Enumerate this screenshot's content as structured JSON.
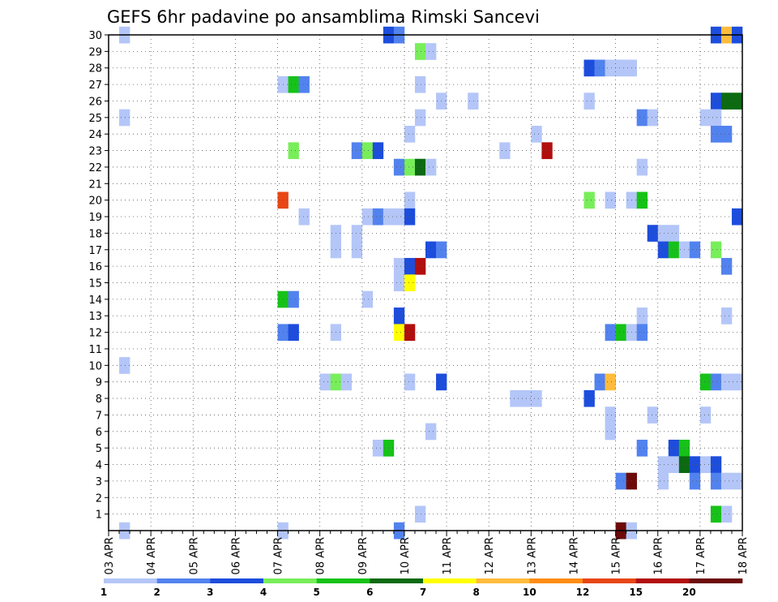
{
  "chart_data": {
    "type": "heatmap",
    "title": "GEFS 6hr padavine po ansamblima Rimski Sancevi",
    "x_tick_labels": [
      "03 APR",
      "04 APR",
      "05 APR",
      "06 APR",
      "07 APR",
      "08 APR",
      "09 APR",
      "10 APR",
      "11 APR",
      "12 APR",
      "13 APR",
      "14 APR",
      "15 APR",
      "16 APR",
      "17 APR",
      "18 APR"
    ],
    "x_range_days": [
      0,
      15
    ],
    "y_tick_labels": [
      "1",
      "2",
      "3",
      "4",
      "5",
      "6",
      "7",
      "8",
      "9",
      "10",
      "11",
      "12",
      "13",
      "14",
      "15",
      "16",
      "17",
      "18",
      "19",
      "20",
      "21",
      "22",
      "23",
      "24",
      "25",
      "26",
      "27",
      "28",
      "29",
      "30"
    ],
    "grid": true,
    "colorbar": {
      "labels": [
        "1",
        "2",
        "3",
        "4",
        "5",
        "6",
        "7",
        "8",
        "10",
        "12",
        "15",
        "20"
      ],
      "colors": [
        "#b4c6f8",
        "#5282ee",
        "#1d4ddc",
        "#78ee5a",
        "#16c218",
        "#0c6a12",
        "#ffff00",
        "#ffbc3c",
        "#ff8c12",
        "#e84614",
        "#b20e0e",
        "#6c0a0a"
      ]
    },
    "cells": [
      {
        "day": 0.25,
        "member": 30,
        "level": 1
      },
      {
        "day": 6.5,
        "member": 30,
        "level": 3
      },
      {
        "day": 6.75,
        "member": 30,
        "level": 2
      },
      {
        "day": 14.25,
        "member": 30,
        "level": 3
      },
      {
        "day": 14.5,
        "member": 30,
        "level": 8
      },
      {
        "day": 14.75,
        "member": 30,
        "level": 3
      },
      {
        "day": 7.25,
        "member": 29,
        "level": 4
      },
      {
        "day": 7.5,
        "member": 29,
        "level": 1
      },
      {
        "day": 11.25,
        "member": 28,
        "level": 3
      },
      {
        "day": 11.5,
        "member": 28,
        "level": 2
      },
      {
        "day": 11.75,
        "member": 28,
        "level": 1
      },
      {
        "day": 12.0,
        "member": 28,
        "level": 1
      },
      {
        "day": 12.25,
        "member": 28,
        "level": 1
      },
      {
        "day": 4.0,
        "member": 27,
        "level": 1
      },
      {
        "day": 4.25,
        "member": 27,
        "level": 5
      },
      {
        "day": 4.5,
        "member": 27,
        "level": 2
      },
      {
        "day": 7.25,
        "member": 27,
        "level": 1
      },
      {
        "day": 7.75,
        "member": 26,
        "level": 1
      },
      {
        "day": 8.5,
        "member": 26,
        "level": 1
      },
      {
        "day": 11.25,
        "member": 26,
        "level": 1
      },
      {
        "day": 14.25,
        "member": 26,
        "level": 3
      },
      {
        "day": 14.5,
        "member": 26,
        "level": 6
      },
      {
        "day": 14.75,
        "member": 26,
        "level": 6
      },
      {
        "day": 0.25,
        "member": 25,
        "level": 1
      },
      {
        "day": 7.25,
        "member": 25,
        "level": 1
      },
      {
        "day": 12.5,
        "member": 25,
        "level": 2
      },
      {
        "day": 12.75,
        "member": 25,
        "level": 1
      },
      {
        "day": 14.0,
        "member": 25,
        "level": 1
      },
      {
        "day": 14.25,
        "member": 25,
        "level": 1
      },
      {
        "day": 7.0,
        "member": 24,
        "level": 1
      },
      {
        "day": 10.0,
        "member": 24,
        "level": 1
      },
      {
        "day": 14.25,
        "member": 24,
        "level": 2
      },
      {
        "day": 14.5,
        "member": 24,
        "level": 2
      },
      {
        "day": 4.25,
        "member": 23,
        "level": 4
      },
      {
        "day": 5.75,
        "member": 23,
        "level": 2
      },
      {
        "day": 6.0,
        "member": 23,
        "level": 4
      },
      {
        "day": 6.25,
        "member": 23,
        "level": 3
      },
      {
        "day": 9.25,
        "member": 23,
        "level": 1
      },
      {
        "day": 10.25,
        "member": 23,
        "level": 11
      },
      {
        "day": 6.75,
        "member": 22,
        "level": 2
      },
      {
        "day": 7.0,
        "member": 22,
        "level": 4
      },
      {
        "day": 7.25,
        "member": 22,
        "level": 6
      },
      {
        "day": 7.5,
        "member": 22,
        "level": 1
      },
      {
        "day": 12.5,
        "member": 22,
        "level": 1
      },
      {
        "day": 4.0,
        "member": 20,
        "level": 10
      },
      {
        "day": 7.0,
        "member": 20,
        "level": 1
      },
      {
        "day": 11.25,
        "member": 20,
        "level": 4
      },
      {
        "day": 11.75,
        "member": 20,
        "level": 1
      },
      {
        "day": 12.25,
        "member": 20,
        "level": 1
      },
      {
        "day": 12.5,
        "member": 20,
        "level": 5
      },
      {
        "day": 4.5,
        "member": 19,
        "level": 1
      },
      {
        "day": 6.0,
        "member": 19,
        "level": 1
      },
      {
        "day": 6.25,
        "member": 19,
        "level": 2
      },
      {
        "day": 6.5,
        "member": 19,
        "level": 1
      },
      {
        "day": 6.75,
        "member": 19,
        "level": 1
      },
      {
        "day": 7.0,
        "member": 19,
        "level": 3
      },
      {
        "day": 14.75,
        "member": 19,
        "level": 3
      },
      {
        "day": 5.25,
        "member": 18,
        "level": 1
      },
      {
        "day": 5.75,
        "member": 18,
        "level": 1
      },
      {
        "day": 12.75,
        "member": 18,
        "level": 3
      },
      {
        "day": 13.0,
        "member": 18,
        "level": 1
      },
      {
        "day": 13.25,
        "member": 18,
        "level": 1
      },
      {
        "day": 5.25,
        "member": 17,
        "level": 1
      },
      {
        "day": 5.75,
        "member": 17,
        "level": 1
      },
      {
        "day": 14.25,
        "member": 17,
        "level": 4
      },
      {
        "day": 7.5,
        "member": 17,
        "level": 3
      },
      {
        "day": 7.75,
        "member": 17,
        "level": 2
      },
      {
        "day": 13.0,
        "member": 17,
        "level": 3
      },
      {
        "day": 13.25,
        "member": 17,
        "level": 5
      },
      {
        "day": 13.5,
        "member": 17,
        "level": 1
      },
      {
        "day": 13.75,
        "member": 17,
        "level": 2
      },
      {
        "day": 6.75,
        "member": 16,
        "level": 1
      },
      {
        "day": 7.0,
        "member": 16,
        "level": 3
      },
      {
        "day": 7.25,
        "member": 16,
        "level": 11
      },
      {
        "day": 14.5,
        "member": 16,
        "level": 2
      },
      {
        "day": 6.75,
        "member": 15,
        "level": 1
      },
      {
        "day": 7.0,
        "member": 15,
        "level": 7
      },
      {
        "day": 4.0,
        "member": 14,
        "level": 5
      },
      {
        "day": 4.25,
        "member": 14,
        "level": 2
      },
      {
        "day": 6.0,
        "member": 14,
        "level": 1
      },
      {
        "day": 6.75,
        "member": 13,
        "level": 3
      },
      {
        "day": 12.5,
        "member": 13,
        "level": 1
      },
      {
        "day": 14.5,
        "member": 13,
        "level": 1
      },
      {
        "day": 4.0,
        "member": 12,
        "level": 2
      },
      {
        "day": 4.25,
        "member": 12,
        "level": 3
      },
      {
        "day": 5.25,
        "member": 12,
        "level": 1
      },
      {
        "day": 6.75,
        "member": 12,
        "level": 7
      },
      {
        "day": 7.0,
        "member": 12,
        "level": 11
      },
      {
        "day": 11.75,
        "member": 12,
        "level": 2
      },
      {
        "day": 12.0,
        "member": 12,
        "level": 5
      },
      {
        "day": 12.25,
        "member": 12,
        "level": 1
      },
      {
        "day": 12.5,
        "member": 12,
        "level": 2
      },
      {
        "day": 0.25,
        "member": 10,
        "level": 1
      },
      {
        "day": 5.0,
        "member": 9,
        "level": 1
      },
      {
        "day": 5.25,
        "member": 9,
        "level": 4
      },
      {
        "day": 5.5,
        "member": 9,
        "level": 1
      },
      {
        "day": 7.0,
        "member": 9,
        "level": 1
      },
      {
        "day": 7.75,
        "member": 9,
        "level": 3
      },
      {
        "day": 11.5,
        "member": 9,
        "level": 2
      },
      {
        "day": 11.75,
        "member": 9,
        "level": 8
      },
      {
        "day": 14.0,
        "member": 9,
        "level": 5
      },
      {
        "day": 14.25,
        "member": 9,
        "level": 2
      },
      {
        "day": 14.5,
        "member": 9,
        "level": 1
      },
      {
        "day": 14.75,
        "member": 9,
        "level": 1
      },
      {
        "day": 9.5,
        "member": 8,
        "level": 1
      },
      {
        "day": 9.75,
        "member": 8,
        "level": 1
      },
      {
        "day": 10.0,
        "member": 8,
        "level": 1
      },
      {
        "day": 11.25,
        "member": 8,
        "level": 3
      },
      {
        "day": 11.75,
        "member": 7,
        "level": 1
      },
      {
        "day": 12.75,
        "member": 7,
        "level": 1
      },
      {
        "day": 14.0,
        "member": 7,
        "level": 1
      },
      {
        "day": 7.5,
        "member": 6,
        "level": 1
      },
      {
        "day": 11.75,
        "member": 6,
        "level": 1
      },
      {
        "day": 6.25,
        "member": 5,
        "level": 1
      },
      {
        "day": 6.5,
        "member": 5,
        "level": 5
      },
      {
        "day": 12.5,
        "member": 5,
        "level": 2
      },
      {
        "day": 13.25,
        "member": 5,
        "level": 3
      },
      {
        "day": 13.5,
        "member": 5,
        "level": 5
      },
      {
        "day": 13.0,
        "member": 4,
        "level": 1
      },
      {
        "day": 13.25,
        "member": 4,
        "level": 1
      },
      {
        "day": 13.5,
        "member": 4,
        "level": 6
      },
      {
        "day": 13.75,
        "member": 4,
        "level": 3
      },
      {
        "day": 14.0,
        "member": 4,
        "level": 1
      },
      {
        "day": 14.25,
        "member": 4,
        "level": 3
      },
      {
        "day": 12.0,
        "member": 3,
        "level": 2
      },
      {
        "day": 12.25,
        "member": 3,
        "level": 12
      },
      {
        "day": 13.0,
        "member": 3,
        "level": 1
      },
      {
        "day": 13.75,
        "member": 3,
        "level": 2
      },
      {
        "day": 14.25,
        "member": 3,
        "level": 2
      },
      {
        "day": 14.5,
        "member": 3,
        "level": 1
      },
      {
        "day": 14.75,
        "member": 3,
        "level": 1
      },
      {
        "day": 14.25,
        "member": 1,
        "level": 5
      },
      {
        "day": 14.5,
        "member": 1,
        "level": 1
      },
      {
        "day": 7.25,
        "member": 1,
        "level": 1
      },
      {
        "day": 0.25,
        "member": 0,
        "level": 1
      },
      {
        "day": 4.0,
        "member": 0,
        "level": 1
      },
      {
        "day": 6.75,
        "member": 0,
        "level": 2
      },
      {
        "day": 12.0,
        "member": 0,
        "level": 12
      },
      {
        "day": 12.25,
        "member": 0,
        "level": 1
      }
    ]
  }
}
